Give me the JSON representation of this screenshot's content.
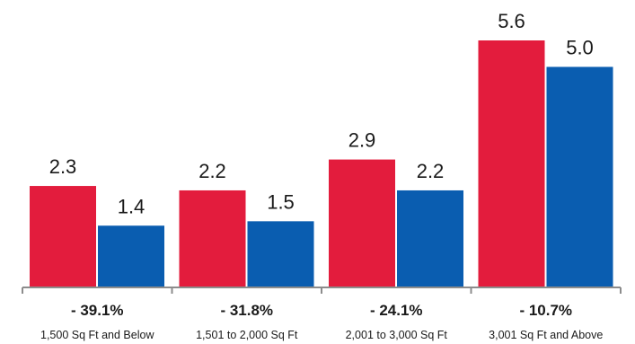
{
  "colors": {
    "series_a": "#e31c3d",
    "series_b": "#0a5db0",
    "axis": "#8c8c8c"
  },
  "chart_data": {
    "type": "bar",
    "title": "",
    "xlabel": "",
    "ylabel": "",
    "ylim": [
      0,
      5.6
    ],
    "grid": false,
    "legend": "none",
    "categories": [
      "1,500 Sq Ft and Below",
      "1,501 to 2,000 Sq Ft",
      "2,001 to 3,000 Sq Ft",
      "3,001 Sq Ft and Above"
    ],
    "series": [
      {
        "values": [
          2.3,
          2.2,
          2.9,
          5.6
        ],
        "labels": [
          "2.3",
          "2.2",
          "2.9",
          "5.6"
        ]
      },
      {
        "values": [
          1.4,
          1.5,
          2.2,
          5.0
        ],
        "labels": [
          "1.4",
          "1.5",
          "2.2",
          "5.0"
        ]
      }
    ],
    "annotations": [
      "- 39.1%",
      "- 31.8%",
      "- 24.1%",
      "- 10.7%"
    ]
  }
}
